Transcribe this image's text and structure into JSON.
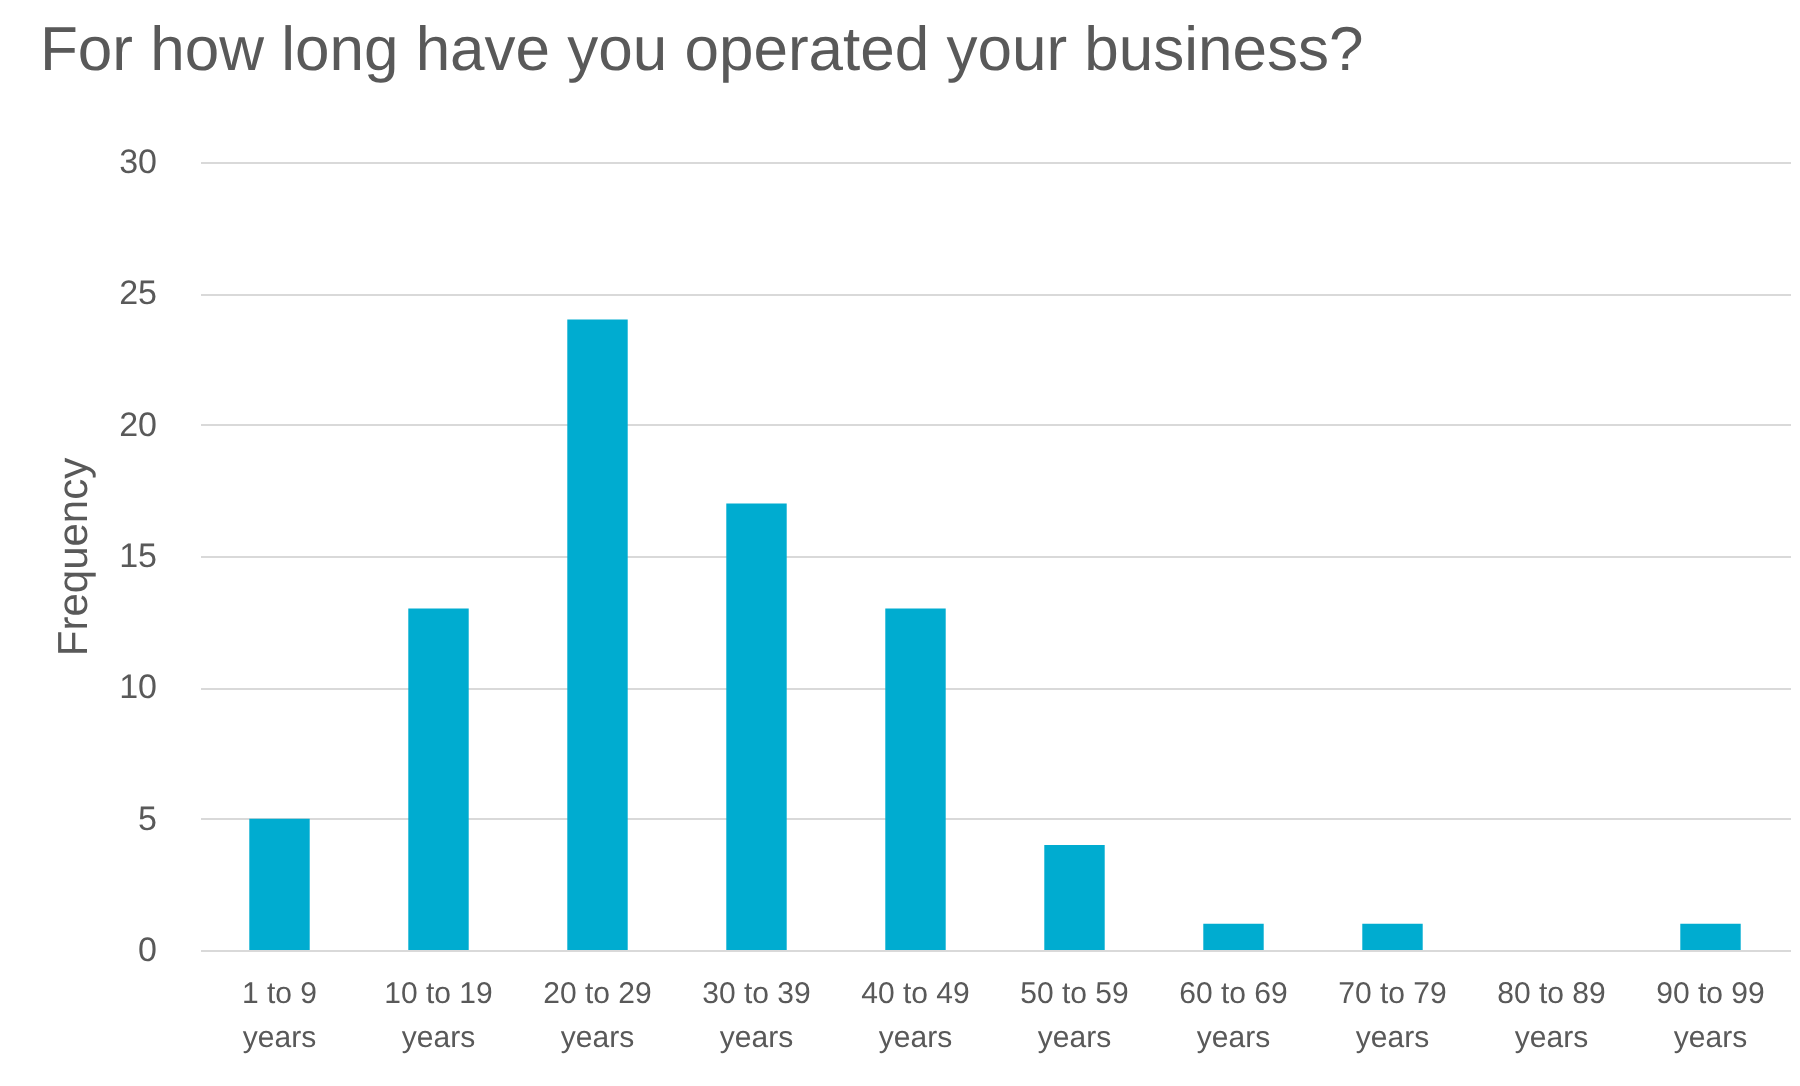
{
  "chart_data": {
    "type": "bar",
    "title": "For how long have you operated your business?",
    "ylabel": "Frequency",
    "categories": [
      "1 to 9 years",
      "10 to 19 years",
      "20 to 29 years",
      "30 to 39 years",
      "40 to 49 years",
      "50 to 59 years",
      "60 to 69 years",
      "70 to 79 years",
      "80 to 89 years",
      "90 to 99 years"
    ],
    "values": [
      5,
      13,
      24,
      17,
      13,
      4,
      1,
      1,
      0,
      1
    ],
    "color": "#00acd0",
    "ylim": [
      0,
      30
    ],
    "yticks": [
      0,
      5,
      10,
      15,
      20,
      25,
      30
    ],
    "grid": "y"
  }
}
